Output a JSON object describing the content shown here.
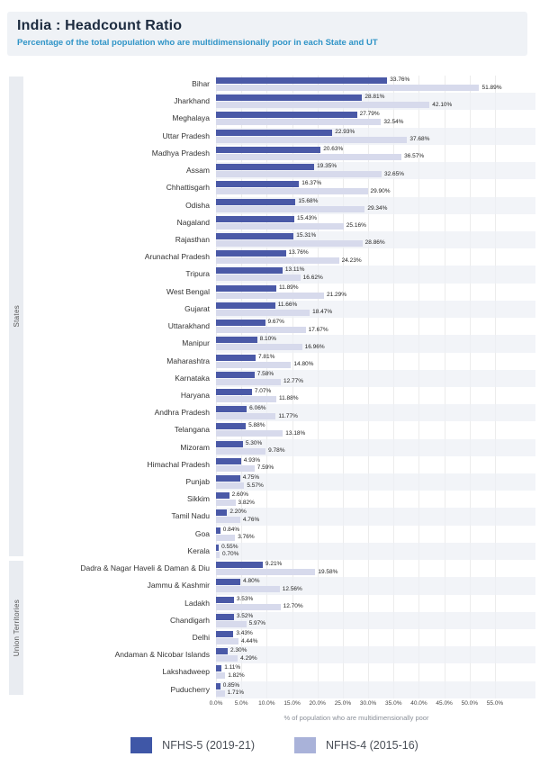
{
  "page": {
    "title": "India : Headcount Ratio",
    "subtitle": "Percentage of the total population who are multidimensionally poor in each State and UT"
  },
  "chart_data": {
    "type": "bar",
    "orientation": "horizontal",
    "title": "India : Headcount Ratio",
    "subtitle": "Percentage of the total population who are multidimensionally poor in each State and UT",
    "xlabel": "% of population who are multidimensionally poor",
    "ylabel": "",
    "xlim": [
      0,
      55
    ],
    "grid": true,
    "legend_position": "bottom",
    "x_ticks": [
      "0.0%",
      "5.0%",
      "10.0%",
      "15.0%",
      "20.0%",
      "25.0%",
      "30.0%",
      "35.0%",
      "40.0%",
      "45.0%",
      "50.0%",
      "55.0%"
    ],
    "x_tick_values": [
      0,
      5,
      10,
      15,
      20,
      25,
      30,
      35,
      40,
      45,
      50,
      55
    ],
    "colors": {
      "nfhs5_bar": "#4a59a7",
      "nfhs4_bar": "#d7daec"
    },
    "legend": [
      {
        "label": "NFHS-5 (2019-21)",
        "color": "#3f57a7"
      },
      {
        "label": "NFHS-4 (2015-16)",
        "color": "#a9b2d9"
      }
    ],
    "groups": [
      {
        "label": "States",
        "categories": [
          "Bihar",
          "Jharkhand",
          "Meghalaya",
          "Uttar Pradesh",
          "Madhya Pradesh",
          "Assam",
          "Chhattisgarh",
          "Odisha",
          "Nagaland",
          "Rajasthan",
          "Arunachal Pradesh",
          "Tripura",
          "West Bengal",
          "Gujarat",
          "Uttarakhand",
          "Manipur",
          "Maharashtra",
          "Karnataka",
          "Haryana",
          "Andhra Pradesh",
          "Telangana",
          "Mizoram",
          "Himachal Pradesh",
          "Punjab",
          "Sikkim",
          "Tamil Nadu",
          "Goa",
          "Kerala"
        ],
        "series": [
          {
            "name": "NFHS-5 (2019-21)",
            "values": [
              33.76,
              28.81,
              27.79,
              22.93,
              20.63,
              19.35,
              16.37,
              15.68,
              15.43,
              15.31,
              13.76,
              13.11,
              11.89,
              11.66,
              9.67,
              8.1,
              7.81,
              7.58,
              7.07,
              6.06,
              5.88,
              5.3,
              4.93,
              4.75,
              2.6,
              2.2,
              0.84,
              0.55
            ]
          },
          {
            "name": "NFHS-4 (2015-16)",
            "values": [
              51.89,
              42.1,
              32.54,
              37.68,
              36.57,
              32.65,
              29.9,
              29.34,
              25.16,
              28.86,
              24.23,
              16.62,
              21.29,
              18.47,
              17.67,
              16.96,
              14.8,
              12.77,
              11.88,
              11.77,
              13.18,
              9.78,
              7.59,
              5.57,
              3.82,
              4.76,
              3.76,
              0.7
            ]
          }
        ]
      },
      {
        "label": "Union Territories",
        "categories": [
          "Dadra & Nagar Haveli & Daman & Diu",
          "Jammu & Kashmir",
          "Ladakh",
          "Chandigarh",
          "Delhi",
          "Andaman & Nicobar Islands",
          "Lakshadweep",
          "Puducherry"
        ],
        "series": [
          {
            "name": "NFHS-5 (2019-21)",
            "values": [
              9.21,
              4.8,
              3.53,
              3.52,
              3.43,
              2.3,
              1.11,
              0.85
            ]
          },
          {
            "name": "NFHS-4 (2015-16)",
            "values": [
              19.58,
              12.56,
              12.7,
              5.97,
              4.44,
              4.29,
              1.82,
              1.71
            ]
          }
        ]
      }
    ]
  }
}
